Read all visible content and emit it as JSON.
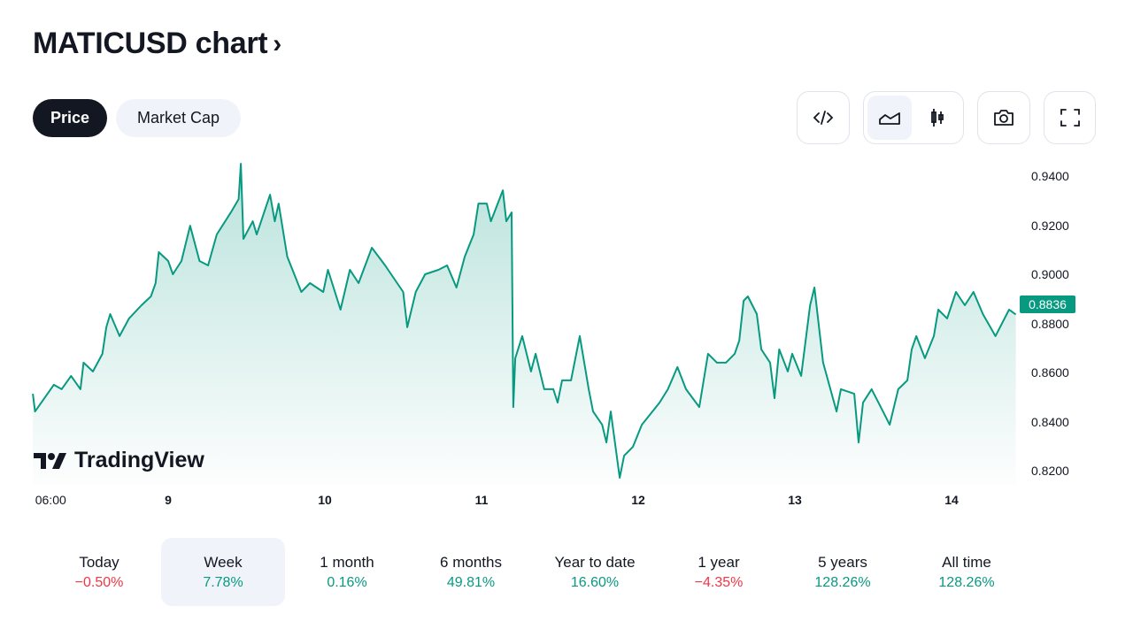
{
  "header": {
    "title": "MATICUSD chart",
    "chevron": "›"
  },
  "tabs": [
    {
      "label": "Price",
      "active": true
    },
    {
      "label": "Market Cap",
      "active": false
    }
  ],
  "toolbar": {
    "icons": [
      "embed-code-icon",
      "area-chart-icon",
      "candlestick-icon",
      "camera-icon",
      "fullscreen-icon"
    ],
    "active_style": "area"
  },
  "colors": {
    "line": "#089981",
    "up": "#089981",
    "down": "#f23645",
    "selected_bg": "#f0f3fa"
  },
  "watermark": "TradingView",
  "last_price": "0.8836",
  "chart_data": {
    "type": "area",
    "title": "",
    "xlabel": "",
    "ylabel": "",
    "x_ticks": [
      {
        "label": "06:00",
        "day": 8.25,
        "bold": false
      },
      {
        "label": "9",
        "day": 9,
        "bold": true
      },
      {
        "label": "10",
        "day": 10,
        "bold": true
      },
      {
        "label": "11",
        "day": 11,
        "bold": true
      },
      {
        "label": "12",
        "day": 12,
        "bold": true
      },
      {
        "label": "13",
        "day": 13,
        "bold": true
      },
      {
        "label": "14",
        "day": 14,
        "bold": true
      }
    ],
    "y_ticks": [
      "0.9400",
      "0.9200",
      "0.9000",
      "0.8800",
      "0.8600",
      "0.8400",
      "0.8200"
    ],
    "ylim": [
      0.815,
      0.946
    ],
    "grid": false,
    "series": [
      {
        "points": [
          [
            8.136,
            0.8513
          ],
          [
            8.15,
            0.8441
          ],
          [
            8.21,
            0.8495
          ],
          [
            8.27,
            0.855
          ],
          [
            8.32,
            0.8532
          ],
          [
            8.38,
            0.8586
          ],
          [
            8.44,
            0.8532
          ],
          [
            8.46,
            0.864
          ],
          [
            8.52,
            0.8604
          ],
          [
            8.58,
            0.8676
          ],
          [
            8.605,
            0.8784
          ],
          [
            8.63,
            0.8838
          ],
          [
            8.69,
            0.8748
          ],
          [
            8.75,
            0.882
          ],
          [
            8.83,
            0.8874
          ],
          [
            8.89,
            0.891
          ],
          [
            8.92,
            0.8964
          ],
          [
            8.94,
            0.909
          ],
          [
            9.0,
            0.9054
          ],
          [
            9.03,
            0.9
          ],
          [
            9.085,
            0.9054
          ],
          [
            9.14,
            0.9198
          ],
          [
            9.2,
            0.9054
          ],
          [
            9.255,
            0.9036
          ],
          [
            9.31,
            0.9162
          ],
          [
            9.4,
            0.9252
          ],
          [
            9.45,
            0.9306
          ],
          [
            9.464,
            0.945
          ],
          [
            9.48,
            0.9144
          ],
          [
            9.54,
            0.9216
          ],
          [
            9.565,
            0.9162
          ],
          [
            9.65,
            0.9324
          ],
          [
            9.68,
            0.9216
          ],
          [
            9.705,
            0.9288
          ],
          [
            9.76,
            0.9072
          ],
          [
            9.85,
            0.8928
          ],
          [
            9.905,
            0.8964
          ],
          [
            9.99,
            0.8928
          ],
          [
            10.02,
            0.9018
          ],
          [
            10.1,
            0.8856
          ],
          [
            10.16,
            0.9018
          ],
          [
            10.215,
            0.8964
          ],
          [
            10.3,
            0.9108
          ],
          [
            10.385,
            0.9036
          ],
          [
            10.5,
            0.8928
          ],
          [
            10.526,
            0.8784
          ],
          [
            10.58,
            0.8928
          ],
          [
            10.64,
            0.9
          ],
          [
            10.725,
            0.9018
          ],
          [
            10.78,
            0.9036
          ],
          [
            10.84,
            0.8946
          ],
          [
            10.893,
            0.9072
          ],
          [
            10.95,
            0.9162
          ],
          [
            10.98,
            0.9288
          ],
          [
            11.034,
            0.9288
          ],
          [
            11.06,
            0.9216
          ],
          [
            11.136,
            0.9342
          ],
          [
            11.158,
            0.9216
          ],
          [
            11.192,
            0.9252
          ],
          [
            11.203,
            0.8459
          ],
          [
            11.215,
            0.8658
          ],
          [
            11.26,
            0.8748
          ],
          [
            11.316,
            0.8604
          ],
          [
            11.345,
            0.8676
          ],
          [
            11.4,
            0.8532
          ],
          [
            11.458,
            0.8532
          ],
          [
            11.486,
            0.8477
          ],
          [
            11.514,
            0.8568
          ],
          [
            11.571,
            0.8568
          ],
          [
            11.627,
            0.8748
          ],
          [
            11.684,
            0.8532
          ],
          [
            11.712,
            0.8441
          ],
          [
            11.77,
            0.8387
          ],
          [
            11.797,
            0.8315
          ],
          [
            11.825,
            0.8441
          ],
          [
            11.882,
            0.8171
          ],
          [
            11.91,
            0.8261
          ],
          [
            11.966,
            0.8297
          ],
          [
            12.023,
            0.8387
          ],
          [
            12.136,
            0.8477
          ],
          [
            12.19,
            0.8532
          ],
          [
            12.25,
            0.8622
          ],
          [
            12.305,
            0.8532
          ],
          [
            12.39,
            0.8459
          ],
          [
            12.446,
            0.8676
          ],
          [
            12.503,
            0.864
          ],
          [
            12.56,
            0.864
          ],
          [
            12.616,
            0.8676
          ],
          [
            12.645,
            0.873
          ],
          [
            12.673,
            0.8892
          ],
          [
            12.7,
            0.891
          ],
          [
            12.757,
            0.8838
          ],
          [
            12.786,
            0.8694
          ],
          [
            12.842,
            0.864
          ],
          [
            12.87,
            0.8495
          ],
          [
            12.9,
            0.8694
          ],
          [
            12.955,
            0.8604
          ],
          [
            12.983,
            0.8676
          ],
          [
            13.04,
            0.8586
          ],
          [
            13.097,
            0.8874
          ],
          [
            13.125,
            0.8946
          ],
          [
            13.18,
            0.864
          ],
          [
            13.266,
            0.8441
          ],
          [
            13.294,
            0.8532
          ],
          [
            13.379,
            0.8513
          ],
          [
            13.407,
            0.8315
          ],
          [
            13.435,
            0.8477
          ],
          [
            13.49,
            0.8532
          ],
          [
            13.577,
            0.8423
          ],
          [
            13.605,
            0.8387
          ],
          [
            13.66,
            0.8532
          ],
          [
            13.718,
            0.8568
          ],
          [
            13.746,
            0.8694
          ],
          [
            13.775,
            0.8748
          ],
          [
            13.83,
            0.8658
          ],
          [
            13.887,
            0.8748
          ],
          [
            13.915,
            0.8856
          ],
          [
            13.972,
            0.882
          ],
          [
            14.028,
            0.8928
          ],
          [
            14.085,
            0.8874
          ],
          [
            14.14,
            0.8928
          ],
          [
            14.2,
            0.8838
          ],
          [
            14.28,
            0.8748
          ],
          [
            14.367,
            0.8856
          ],
          [
            14.41,
            0.8836
          ]
        ]
      }
    ]
  },
  "periods": [
    {
      "label": "Today",
      "value": "−0.50%",
      "dir": "down",
      "selected": false
    },
    {
      "label": "Week",
      "value": "7.78%",
      "dir": "up",
      "selected": true
    },
    {
      "label": "1 month",
      "value": "0.16%",
      "dir": "up",
      "selected": false
    },
    {
      "label": "6 months",
      "value": "49.81%",
      "dir": "up",
      "selected": false
    },
    {
      "label": "Year to date",
      "value": "16.60%",
      "dir": "up",
      "selected": false
    },
    {
      "label": "1 year",
      "value": "−4.35%",
      "dir": "down",
      "selected": false
    },
    {
      "label": "5 years",
      "value": "128.26%",
      "dir": "up",
      "selected": false
    },
    {
      "label": "All time",
      "value": "128.26%",
      "dir": "up",
      "selected": false
    }
  ]
}
